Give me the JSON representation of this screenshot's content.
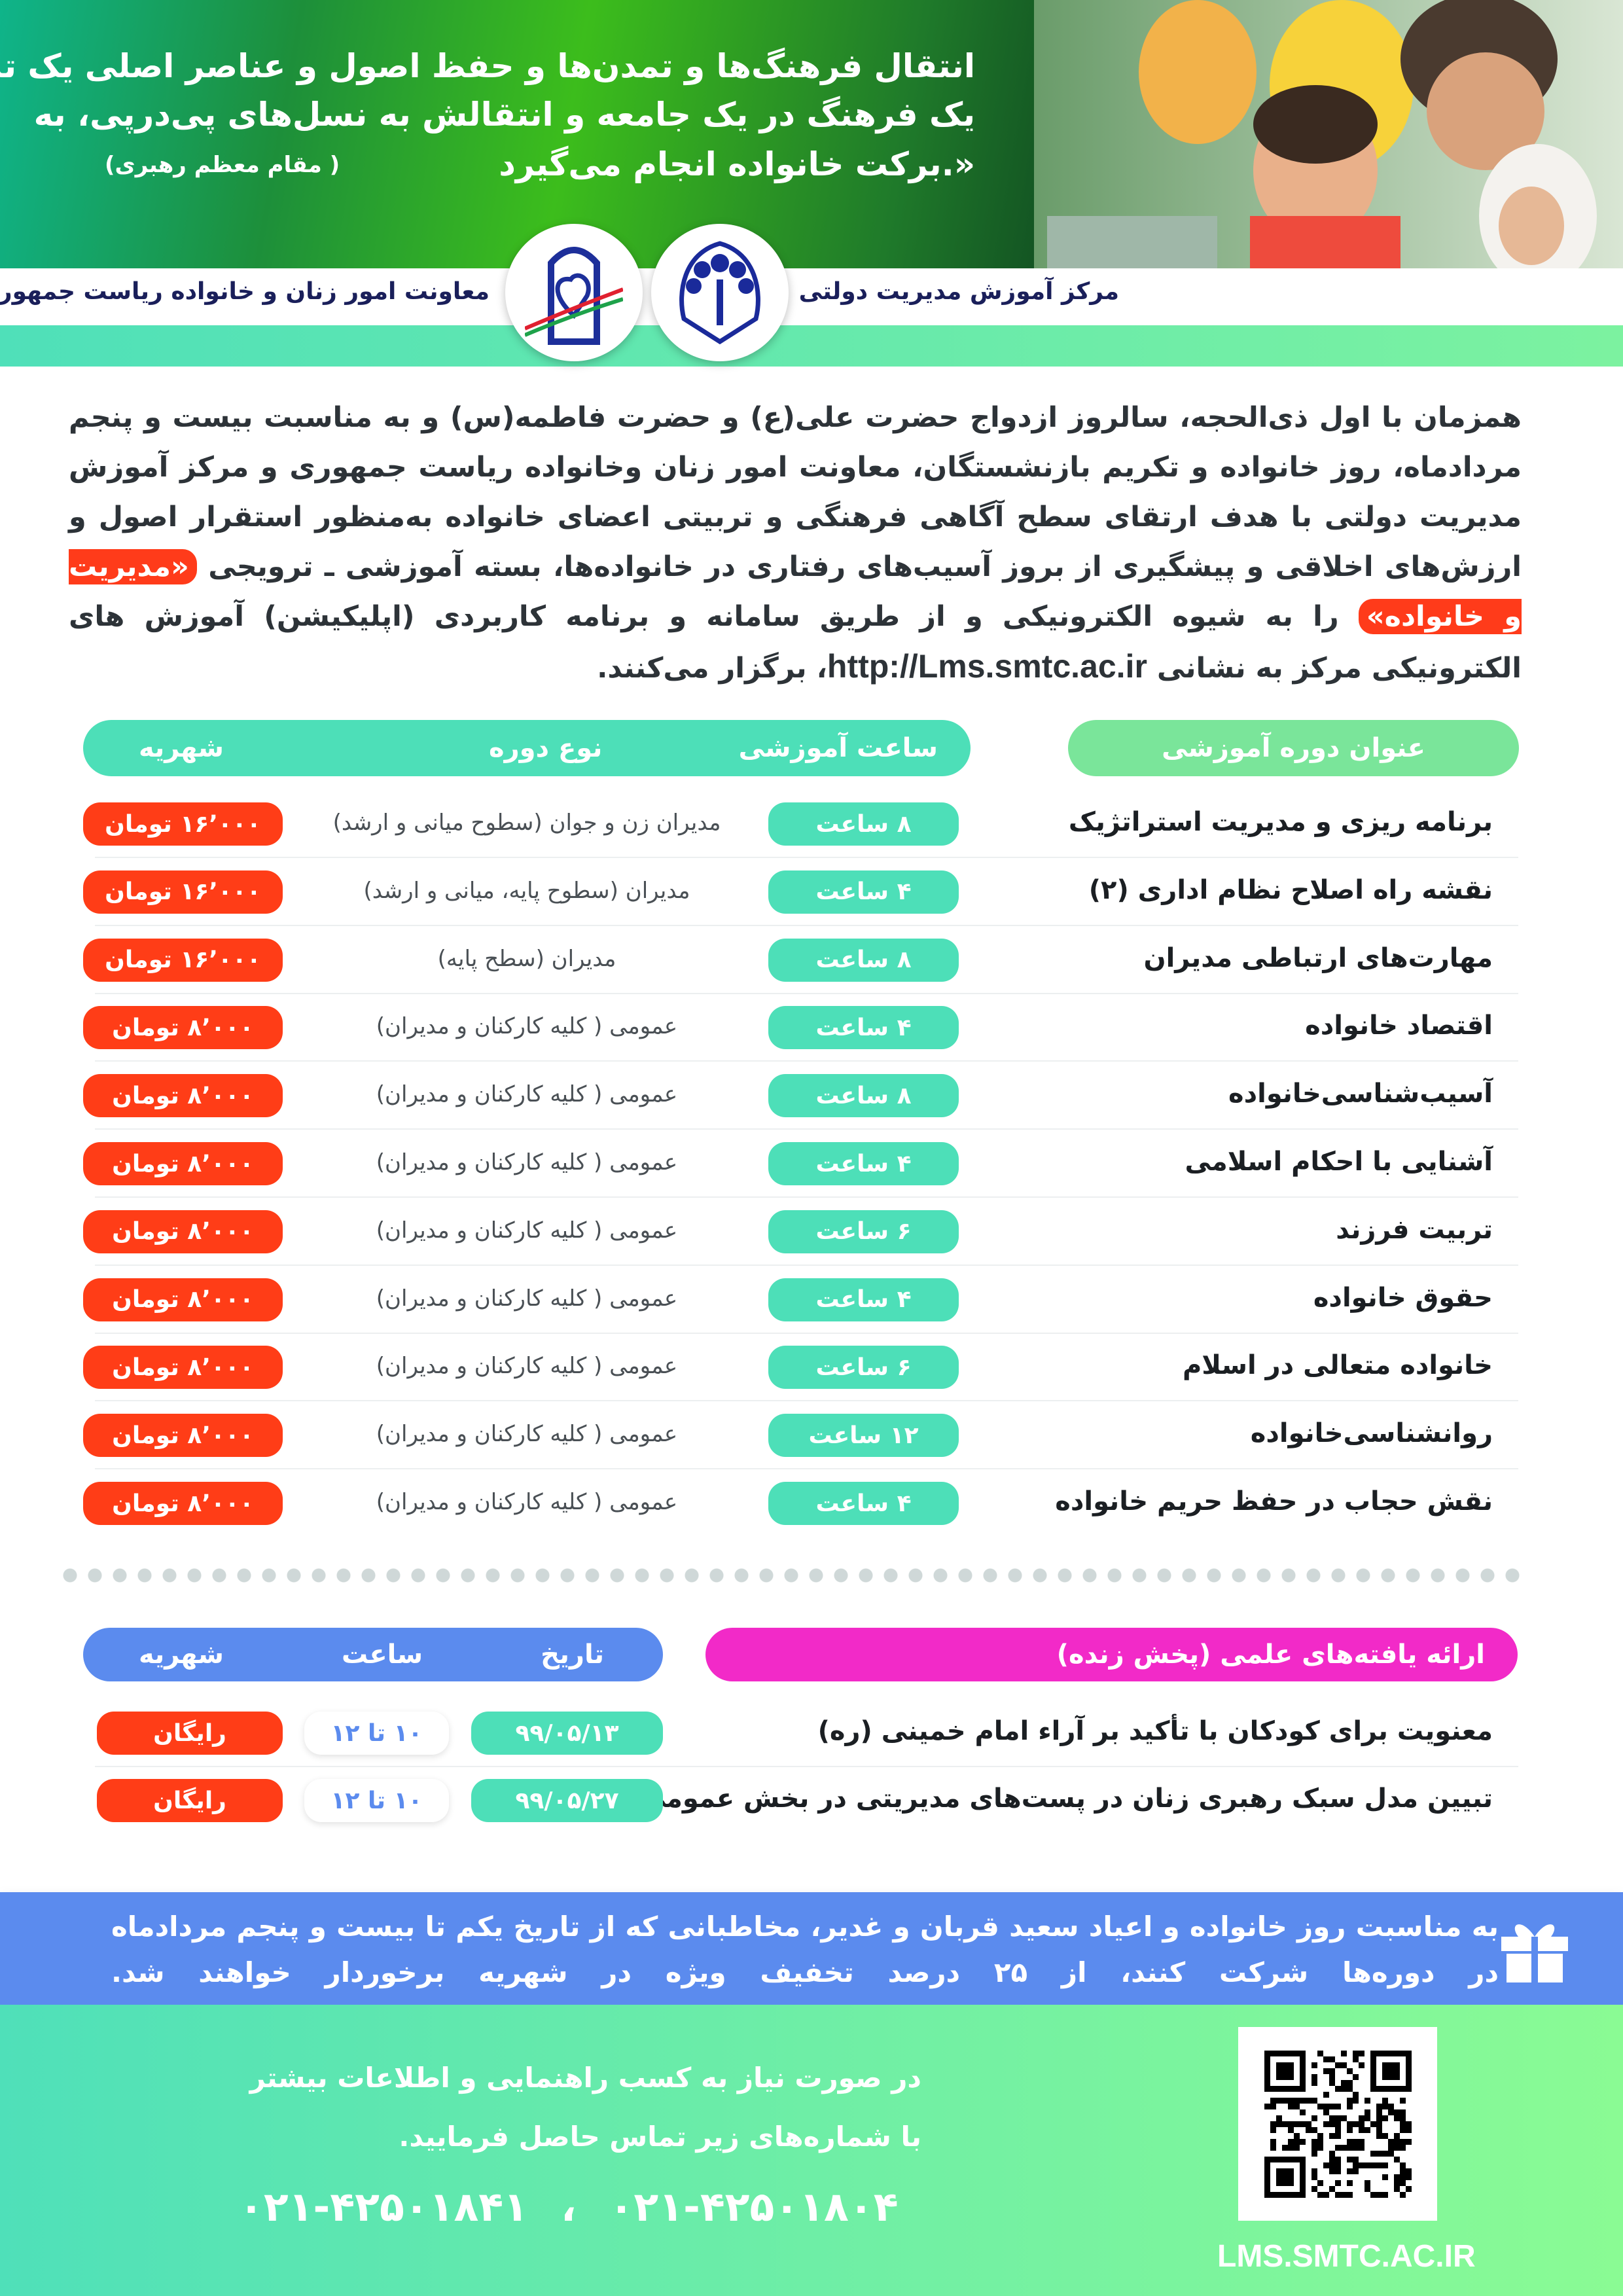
{
  "header": {
    "quote_lines": [
      "«انتقال فرهنگ‌ها و تمدن‌ها و حفظ اصول و عناصر اصلی یک تمدن و",
      "یک فرهنگ در یک جامعه و انتقالش به نسل‌های پی‌درپی، به",
      "برکت خانواده انجام می‌گیرد.»"
    ],
    "quote_attribution": "(مقام معظم رهبری )",
    "org_smtc": "مرکز آموزش مدیریت دولتی",
    "org_women": "معاونت امور زنان و خانواده ریاست جمهوری"
  },
  "intro": {
    "before": "همزمان با اول ذی‌الحجه، سالروز ازدواج حضرت علی(ع) و حضرت فاطمه(س) و به مناسبت بیست و پنجم مردادماه، روز خانواده و تکریم بازنشستگان، معاونت امور زنان وخانواده ریاست جمهوری و مرکز آموزش مدیریت دولتی با هدف ارتقای سطح آگاهی فرهنگی و تربیتی اعضای خانواده به‌منظور استقرار اصول و ارزش‌های اخلاقی و پیشگیری از بروز آسیب‌های رفتاری در خانواده‌ها، بسته آموزشی ـ ترویجی",
    "highlight": "«مدیریت و خانواده»",
    "middle": "را به شیوه الکترونیکی و از طریق سامانه و برنامه کاربردی (اپلیکیشن) آموزش های الکترونیکی مرکز به نشانی",
    "url": "http://Lms.smtc.ac.ir",
    "after": "، برگزار می‌کنند."
  },
  "courses": {
    "headers": {
      "title": "عنوان دوره آموزشی",
      "hours": "ساعت آموزشی",
      "type": "نوع دوره",
      "fee": "شهریه"
    },
    "rows": [
      {
        "title": "برنامه ریزی و مدیریت استراتژیک",
        "hours": "۸ ساعت",
        "type": "مدیران زن و جوان (سطوح میانی و ارشد)",
        "fee": "۱۶٬۰۰۰ تومان"
      },
      {
        "title": "نقشه راه اصلاح نظام اداری (۲)",
        "hours": "۴ ساعت",
        "type": "مدیران (سطوح پایه، میانی و ارشد)",
        "fee": "۱۶٬۰۰۰ تومان"
      },
      {
        "title": "مهارت‌های ارتباطی مدیران",
        "hours": "۸ ساعت",
        "type": "مدیران (سطح پایه)",
        "fee": "۱۶٬۰۰۰ تومان"
      },
      {
        "title": "اقتصاد خانواده",
        "hours": "۴ ساعت",
        "type": "عمومی ( کلیه کارکنان و مدیران)",
        "fee": "۸٬۰۰۰ تومان"
      },
      {
        "title": "آسیب‌شناسی‌خانواده",
        "hours": "۸ ساعت",
        "type": "عمومی ( کلیه کارکنان و مدیران)",
        "fee": "۸٬۰۰۰ تومان"
      },
      {
        "title": "آشنایی با احکام اسلامی",
        "hours": "۴ ساعت",
        "type": "عمومی ( کلیه کارکنان و مدیران)",
        "fee": "۸٬۰۰۰ تومان"
      },
      {
        "title": "تربیت فرزند",
        "hours": "۶ ساعت",
        "type": "عمومی ( کلیه کارکنان و مدیران)",
        "fee": "۸٬۰۰۰ تومان"
      },
      {
        "title": "حقوق خانواده",
        "hours": "۴ ساعت",
        "type": "عمومی ( کلیه کارکنان و مدیران)",
        "fee": "۸٬۰۰۰ تومان"
      },
      {
        "title": "خانواده متعالی در اسلام",
        "hours": "۶ ساعت",
        "type": "عمومی ( کلیه کارکنان و مدیران)",
        "fee": "۸٬۰۰۰ تومان"
      },
      {
        "title": "روانشناسی‌خانواده",
        "hours": "۱۲ ساعت",
        "type": "عمومی ( کلیه کارکنان و مدیران)",
        "fee": "۸٬۰۰۰ تومان"
      },
      {
        "title": "نقش حجاب در حفظ حریم خانواده",
        "hours": "۴ ساعت",
        "type": "عمومی ( کلیه کارکنان و مدیران)",
        "fee": "۸٬۰۰۰ تومان"
      }
    ]
  },
  "live": {
    "headers": {
      "title": "ارائه یافته‌های علمی (پخش زنده)",
      "date": "تاریخ",
      "time": "ساعت",
      "fee": "شهریه"
    },
    "rows": [
      {
        "title": "معنویت برای کودکان با تأکید بر آراء امام خمینی (ره)",
        "date": "۹۹/۰۵/۱۳",
        "time": "۱۰ تا ۱۲",
        "fee": "رایگان"
      },
      {
        "title": "تبیین مدل سبک رهبری زنان در پست‌های مدیریتی در بخش عمومی",
        "date": "۹۹/۰۵/۲۷",
        "time": "۱۰ تا ۱۲",
        "fee": "رایگان"
      }
    ]
  },
  "promo": {
    "icon": "gift-icon",
    "text": "به مناسبت روز خانواده و اعیاد سعید قربان و غدیر، مخاطبانی که از تاریخ یکم تا بیست و پنجم مردادماه در دوره‌ها شرکت کنند، از ۲۵ درصد تخفیف ویژه در شهریه برخوردار خواهند شد."
  },
  "contact": {
    "line1": "در صورت نیاز به کسب راهنمایی و اطلاعات بیشتر",
    "line2": "با شماره‌های زیر تماس حاصل فرمایید.",
    "phones": [
      "۰۲۱-۴۲۵۰۱۸۰۴",
      "۰۲۱-۴۲۵۰۱۸۴۱"
    ],
    "site": "LMS.SMTC.AC.IR"
  },
  "colors": {
    "teal": "#4ddfb8",
    "green": "#7ae59a",
    "orange": "#ff3d17",
    "magenta": "#f22ac8",
    "blue": "#5b8bee"
  }
}
